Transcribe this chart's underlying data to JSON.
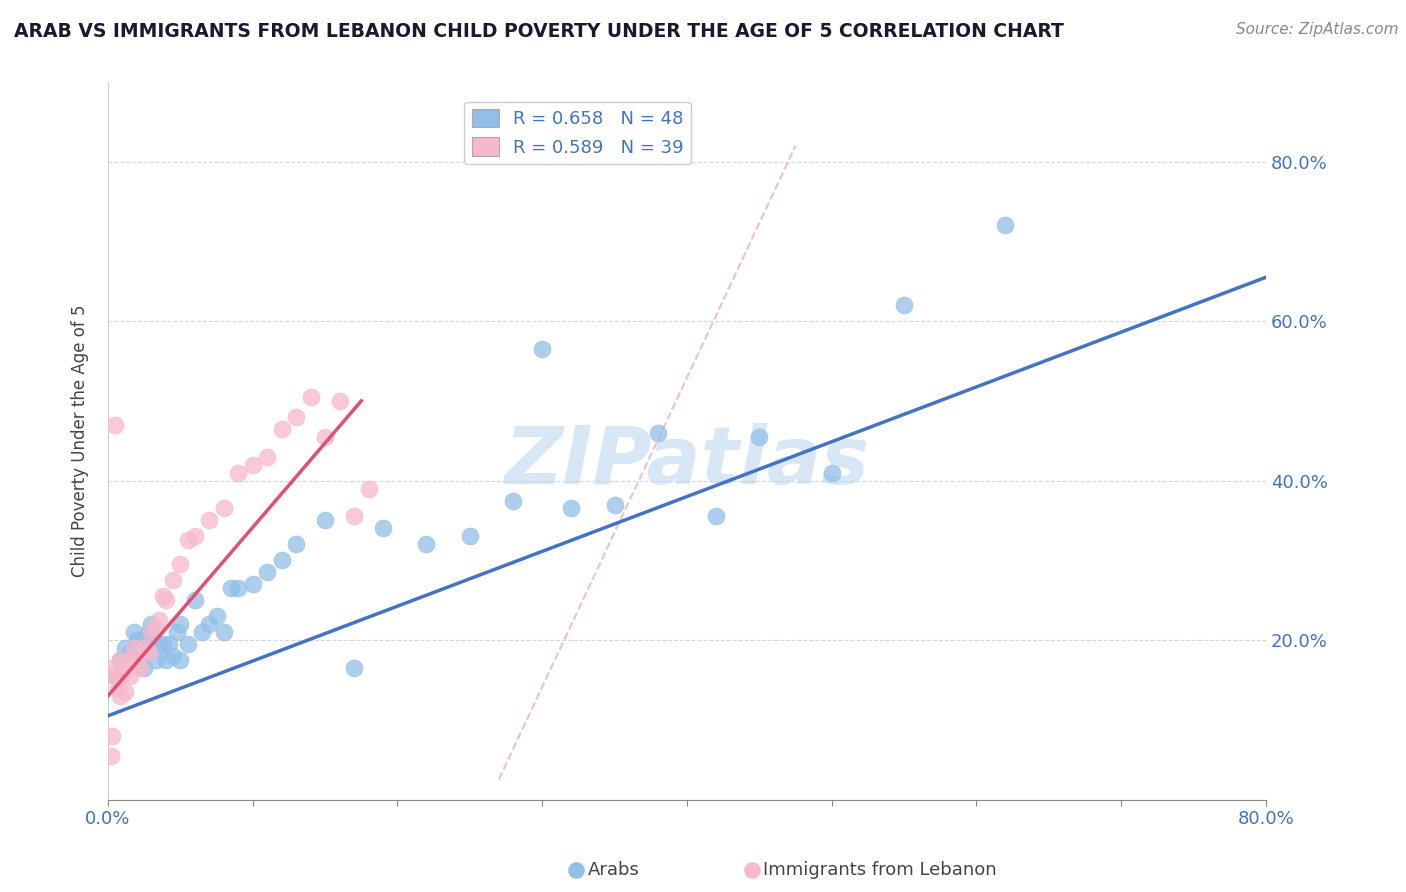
{
  "title": "ARAB VS IMMIGRANTS FROM LEBANON CHILD POVERTY UNDER THE AGE OF 5 CORRELATION CHART",
  "source": "Source: ZipAtlas.com",
  "ylabel": "Child Poverty Under the Age of 5",
  "xlim": [
    0.0,
    0.8
  ],
  "ylim": [
    0.0,
    0.9
  ],
  "legend_arab_r": "0.658",
  "legend_arab_n": "48",
  "legend_leb_r": "0.589",
  "legend_leb_n": "39",
  "arab_color": "#92bfe8",
  "leb_color": "#f7b8cc",
  "arab_line_color": "#4472C4",
  "leb_line_color": "#e05070",
  "watermark": "ZIPatlas",
  "background_color": "#ffffff",
  "grid_color": "#cccccc",
  "arab_line_x0": 0.0,
  "arab_line_y0": 0.105,
  "arab_line_x1": 0.8,
  "arab_line_y1": 0.655,
  "leb_line_x0": 0.0,
  "leb_line_y0": 0.13,
  "leb_line_x1": 0.175,
  "leb_line_y1": 0.5,
  "diag_line_x0": 0.27,
  "diag_line_y0": 0.025,
  "diag_line_x1": 0.475,
  "diag_line_y1": 0.82,
  "arab_scatter_x": [
    0.005,
    0.008,
    0.012,
    0.015,
    0.018,
    0.02,
    0.022,
    0.025,
    0.025,
    0.028,
    0.03,
    0.03,
    0.033,
    0.035,
    0.038,
    0.04,
    0.042,
    0.045,
    0.048,
    0.05,
    0.05,
    0.055,
    0.06,
    0.065,
    0.07,
    0.075,
    0.08,
    0.085,
    0.09,
    0.1,
    0.11,
    0.12,
    0.13,
    0.15,
    0.17,
    0.19,
    0.22,
    0.25,
    0.28,
    0.32,
    0.35,
    0.38,
    0.42,
    0.45,
    0.5,
    0.55,
    0.62,
    0.3
  ],
  "arab_scatter_y": [
    0.155,
    0.175,
    0.19,
    0.185,
    0.21,
    0.2,
    0.175,
    0.165,
    0.2,
    0.21,
    0.22,
    0.205,
    0.175,
    0.195,
    0.195,
    0.175,
    0.195,
    0.18,
    0.21,
    0.175,
    0.22,
    0.195,
    0.25,
    0.21,
    0.22,
    0.23,
    0.21,
    0.265,
    0.265,
    0.27,
    0.285,
    0.3,
    0.32,
    0.35,
    0.165,
    0.34,
    0.32,
    0.33,
    0.375,
    0.365,
    0.37,
    0.46,
    0.355,
    0.455,
    0.41,
    0.62,
    0.72,
    0.565
  ],
  "leb_scatter_x": [
    0.003,
    0.005,
    0.007,
    0.008,
    0.01,
    0.012,
    0.013,
    0.015,
    0.015,
    0.018,
    0.02,
    0.022,
    0.025,
    0.028,
    0.03,
    0.033,
    0.035,
    0.038,
    0.04,
    0.045,
    0.05,
    0.055,
    0.06,
    0.07,
    0.08,
    0.09,
    0.1,
    0.11,
    0.12,
    0.13,
    0.14,
    0.15,
    0.16,
    0.17,
    0.18,
    0.005,
    0.008,
    0.003,
    0.002
  ],
  "leb_scatter_y": [
    0.165,
    0.155,
    0.14,
    0.175,
    0.155,
    0.135,
    0.17,
    0.155,
    0.175,
    0.19,
    0.17,
    0.165,
    0.19,
    0.185,
    0.21,
    0.215,
    0.225,
    0.255,
    0.25,
    0.275,
    0.295,
    0.325,
    0.33,
    0.35,
    0.365,
    0.41,
    0.42,
    0.43,
    0.465,
    0.48,
    0.505,
    0.455,
    0.5,
    0.355,
    0.39,
    0.47,
    0.13,
    0.08,
    0.055
  ]
}
